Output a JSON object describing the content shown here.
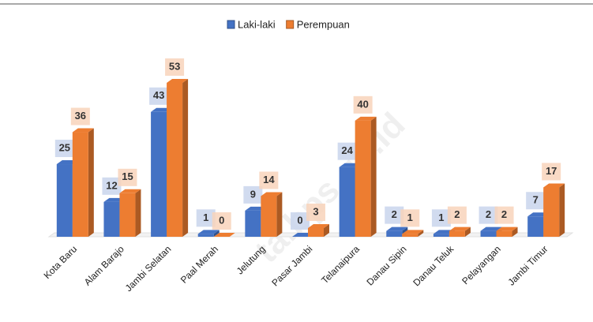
{
  "chart_data": {
    "type": "bar3d",
    "categories": [
      "Kota Baru",
      "Alam Barajo",
      "Jambi Selatan",
      "Paal Merah",
      "Jelutung",
      "Pasar Jambi",
      "Telanaipura",
      "Danau Sipin",
      "Danau Teluk",
      "Pelayangan",
      "Jambi Timur"
    ],
    "series": [
      {
        "name": "Laki-laki",
        "color": "#4472c4",
        "values": [
          25,
          12,
          43,
          1,
          9,
          0,
          24,
          2,
          1,
          2,
          7
        ]
      },
      {
        "name": "Perempuan",
        "color": "#ed7d31",
        "values": [
          36,
          15,
          53,
          0,
          14,
          3,
          40,
          1,
          2,
          2,
          17
        ]
      }
    ],
    "legend": "top",
    "watermark": "ta.bps.go.id"
  }
}
